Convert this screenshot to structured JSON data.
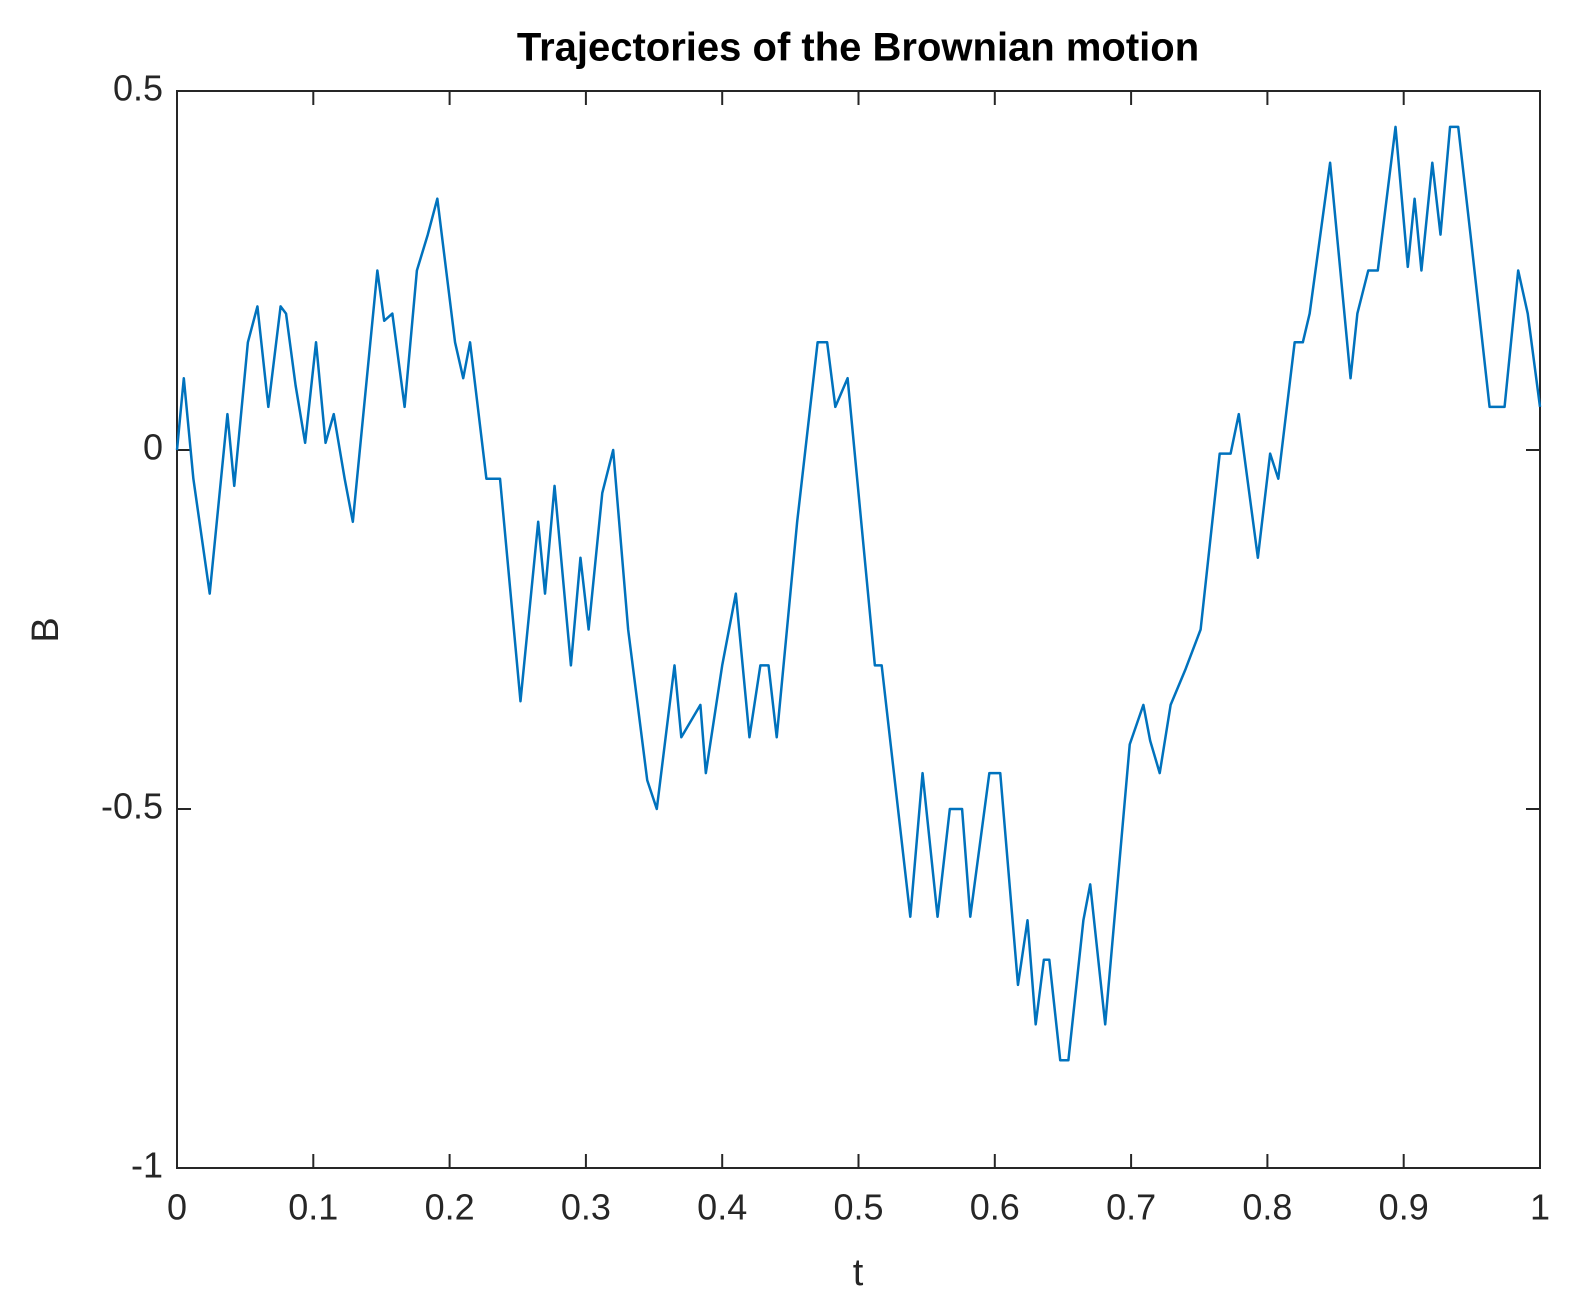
{
  "chart_data": {
    "type": "line",
    "title": "Trajectories of the Brownian motion",
    "xlabel": "t",
    "ylabel": "B",
    "xlim": [
      0,
      1
    ],
    "ylim": [
      -1,
      0.5
    ],
    "xticks": [
      0,
      0.1,
      0.2,
      0.3,
      0.4,
      0.5,
      0.6,
      0.7,
      0.8,
      0.9,
      1
    ],
    "yticks": [
      -1,
      -0.5,
      0,
      0.5
    ],
    "grid": false,
    "series": [
      {
        "name": "B",
        "color": "#0072bd",
        "x": [
          0,
          0.005,
          0.012,
          0.024,
          0.037,
          0.042,
          0.052,
          0.059,
          0.067,
          0.076,
          0.08,
          0.087,
          0.094,
          0.102,
          0.109,
          0.115,
          0.123,
          0.129,
          0.147,
          0.152,
          0.158,
          0.167,
          0.176,
          0.184,
          0.191,
          0.204,
          0.21,
          0.215,
          0.227,
          0.237,
          0.252,
          0.265,
          0.27,
          0.277,
          0.289,
          0.296,
          0.302,
          0.312,
          0.32,
          0.331,
          0.345,
          0.352,
          0.365,
          0.37,
          0.384,
          0.388,
          0.4,
          0.41,
          0.42,
          0.428,
          0.434,
          0.44,
          0.455,
          0.47,
          0.477,
          0.483,
          0.492,
          0.512,
          0.517,
          0.538,
          0.547,
          0.558,
          0.567,
          0.576,
          0.582,
          0.596,
          0.604,
          0.617,
          0.624,
          0.63,
          0.636,
          0.64,
          0.648,
          0.654,
          0.665,
          0.67,
          0.681,
          0.699,
          0.709,
          0.714,
          0.721,
          0.729,
          0.74,
          0.751,
          0.765,
          0.773,
          0.779,
          0.793,
          0.802,
          0.808,
          0.82,
          0.826,
          0.831,
          0.846,
          0.861,
          0.866,
          0.874,
          0.881,
          0.894,
          0.903,
          0.908,
          0.913,
          0.921,
          0.927,
          0.934,
          0.94,
          0.949,
          0.963,
          0.974,
          0.984,
          0.991,
          1
        ],
        "values": [
          0,
          0.1,
          -0.04,
          -0.2,
          0.05,
          -0.05,
          0.15,
          0.2,
          0.06,
          0.2,
          0.19,
          0.09,
          0.01,
          0.15,
          0.01,
          0.05,
          -0.04,
          -0.1,
          0.25,
          0.18,
          0.19,
          0.06,
          0.25,
          0.3,
          0.35,
          0.15,
          0.1,
          0.15,
          -0.04,
          -0.04,
          -0.35,
          -0.1,
          -0.2,
          -0.05,
          -0.3,
          -0.15,
          -0.25,
          -0.06,
          0,
          -0.25,
          -0.46,
          -0.5,
          -0.3,
          -0.4,
          -0.355,
          -0.45,
          -0.3,
          -0.2,
          -0.4,
          -0.3,
          -0.3,
          -0.4,
          -0.1,
          0.15,
          0.15,
          0.06,
          0.1,
          -0.3,
          -0.3,
          -0.65,
          -0.45,
          -0.65,
          -0.5,
          -0.5,
          -0.65,
          -0.45,
          -0.45,
          -0.745,
          -0.655,
          -0.8,
          -0.71,
          -0.71,
          -0.85,
          -0.85,
          -0.655,
          -0.605,
          -0.8,
          -0.41,
          -0.355,
          -0.405,
          -0.45,
          -0.355,
          -0.305,
          -0.25,
          -0.005,
          -0.005,
          0.05,
          -0.15,
          -0.005,
          -0.04,
          0.15,
          0.15,
          0.19,
          0.4,
          0.1,
          0.19,
          0.25,
          0.25,
          0.45,
          0.255,
          0.35,
          0.25,
          0.4,
          0.3,
          0.45,
          0.45,
          0.3,
          0.06,
          0.06,
          0.25,
          0.19,
          0.06
        ]
      }
    ]
  }
}
